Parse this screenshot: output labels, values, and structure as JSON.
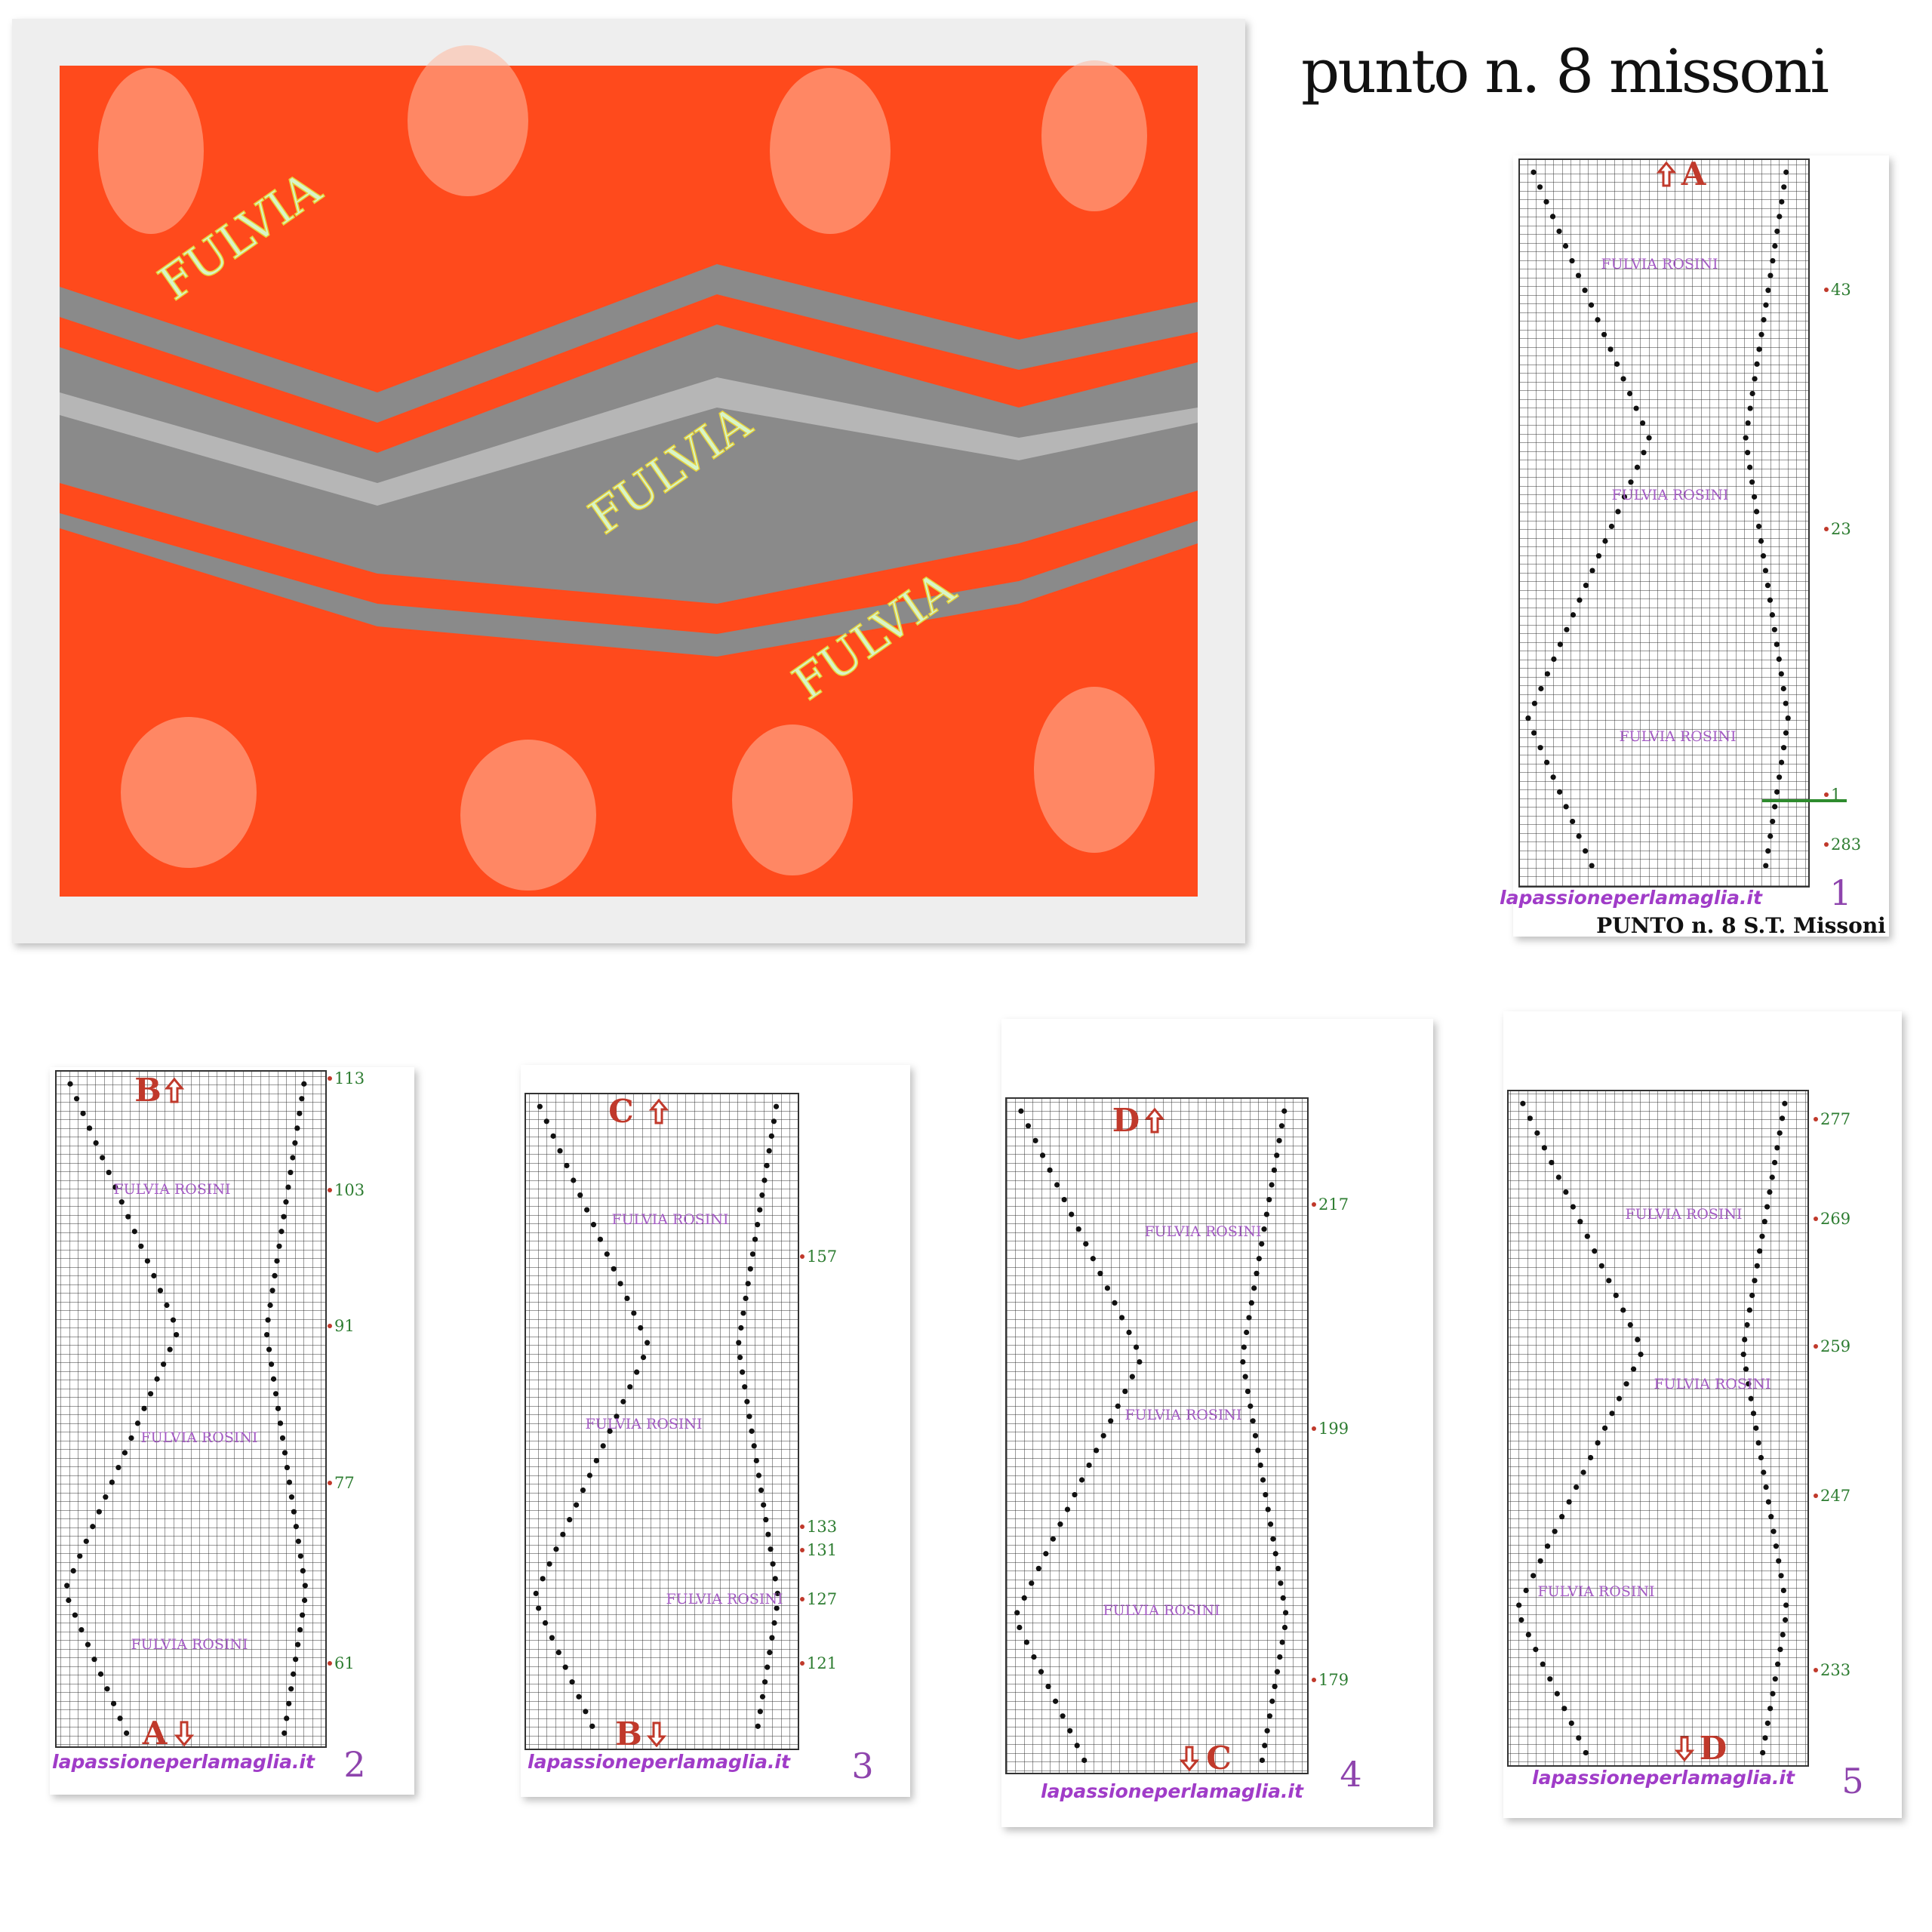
{
  "title": "punto n. 8  missoni",
  "photo": {
    "watermarks": [
      "FULVIA",
      "FULVIA",
      "FULVIA"
    ]
  },
  "charts": [
    {
      "number": "1",
      "top_marker": "A",
      "row_numbers": [
        43,
        23,
        1,
        283
      ],
      "watermarks": [
        "FULVIA ROSINI",
        "FULVIA ROSINI",
        "FULVIA ROSINI"
      ],
      "site": "lapassioneperlamaglia.it",
      "caption": "PUNTO n. 8  S.T. Missoni"
    },
    {
      "number": "2",
      "top_marker": "B",
      "bottom_marker": "A",
      "row_numbers": [
        113,
        103,
        91,
        77,
        61
      ],
      "watermarks": [
        "FULVIA ROSINI",
        "FULVIA ROSINI",
        "FULVIA ROSINI"
      ],
      "site": "lapassioneperlamaglia.it"
    },
    {
      "number": "3",
      "top_marker": "C",
      "bottom_marker": "B",
      "row_numbers": [
        157,
        133,
        131,
        127,
        121
      ],
      "watermarks": [
        "FULVIA ROSINI",
        "FULVIA ROSINI",
        "FULVIA ROSINI"
      ],
      "site": "lapassioneperlamaglia.it"
    },
    {
      "number": "4",
      "top_marker": "D",
      "bottom_marker": "C",
      "row_numbers": [
        217,
        199,
        179
      ],
      "watermarks": [
        "FULVIA ROSINI",
        "FULVIA ROSINI",
        "FULVIA ROSINI"
      ],
      "site": "lapassioneperlamaglia.it"
    },
    {
      "number": "5",
      "bottom_marker": "D",
      "row_numbers": [
        277,
        269,
        259,
        247,
        233
      ],
      "watermarks": [
        "FULVIA ROSINI",
        "FULVIA ROSINI",
        "FULVIA ROSINI"
      ],
      "site": "lapassioneperlamaglia.it"
    }
  ]
}
